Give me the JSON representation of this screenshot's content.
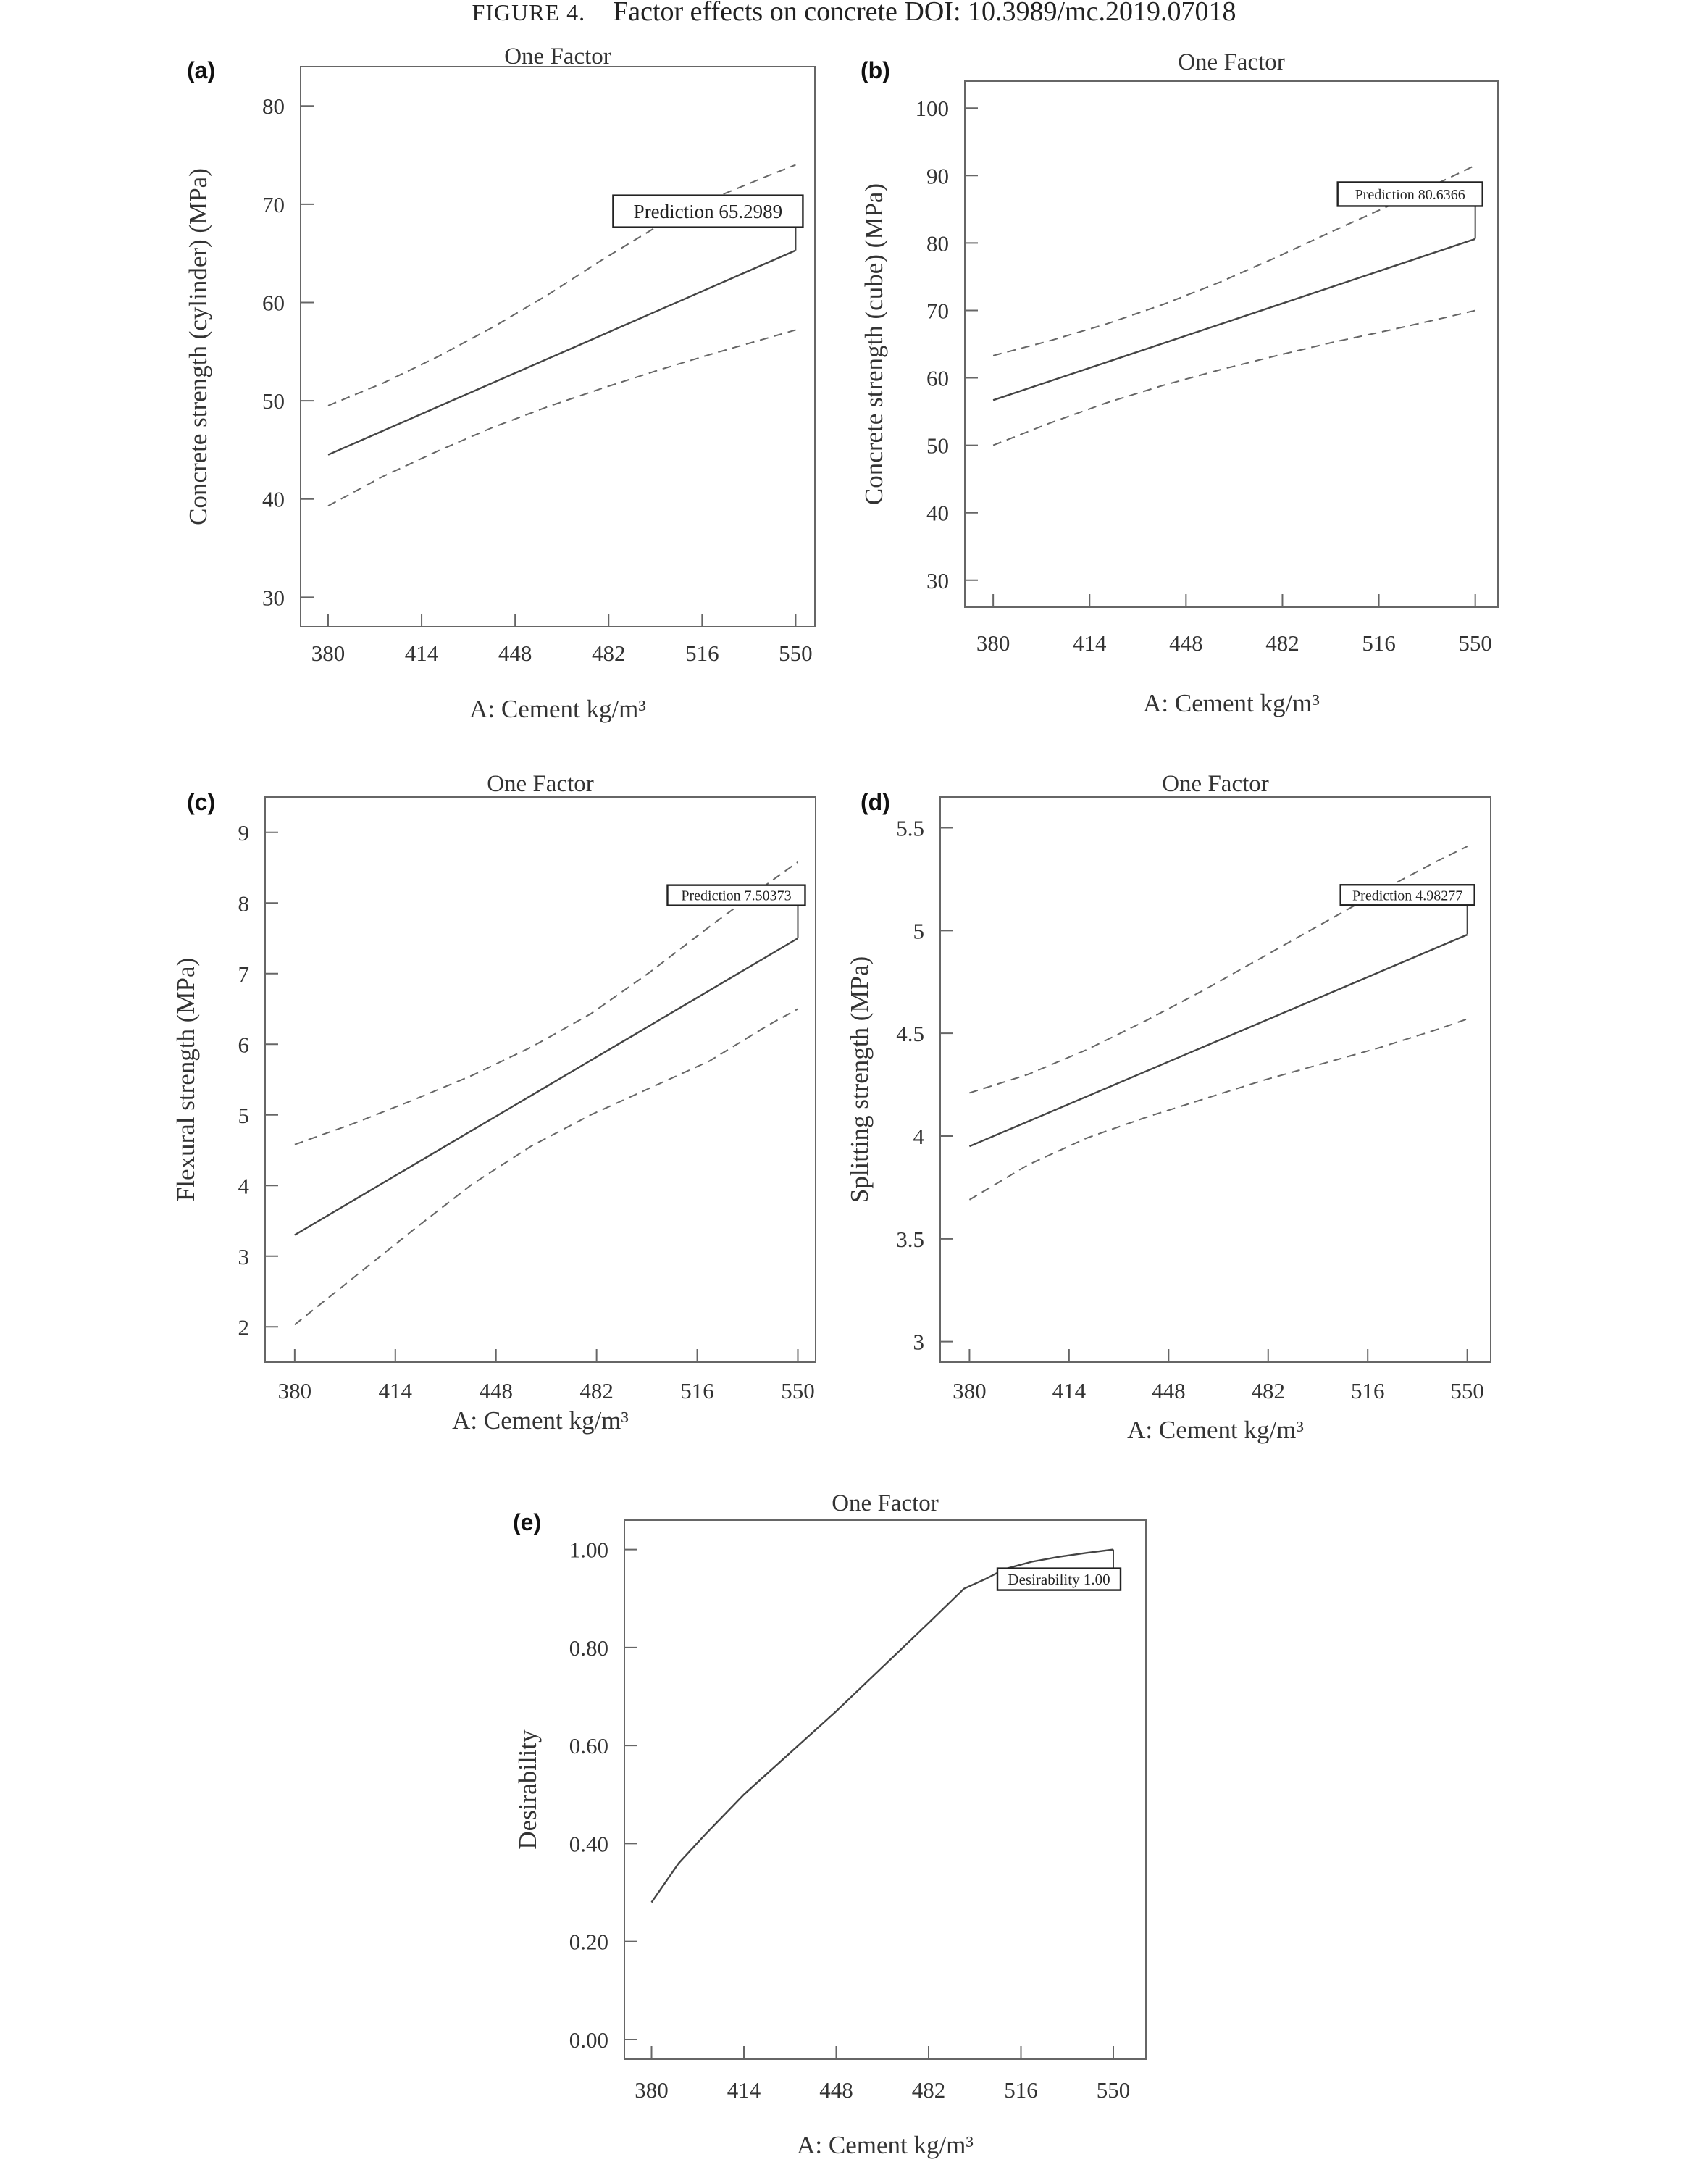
{
  "caption": {
    "label": "FIGURE 4.",
    "text": "Factor effects on concrete DOI: 10.3989/mc.2019.07018"
  },
  "chart_data": [
    {
      "type": "line",
      "panel": "(a)",
      "title": "One Factor",
      "xlabel": "A: Cement kg/m³",
      "ylabel": "Concrete strength (cylinder) (MPa)",
      "xlim": [
        370,
        557
      ],
      "ylim": [
        27,
        84
      ],
      "xticks": [
        "380",
        "414",
        "448",
        "482",
        "516",
        "550"
      ],
      "yticks": [
        "30",
        "40",
        "50",
        "60",
        "70",
        "80"
      ],
      "annotation": {
        "text": "Prediction 65.2989",
        "x": 550,
        "y": 65.2989
      },
      "series": [
        {
          "role": "mean",
          "x": [
            380,
            550
          ],
          "y": [
            44.5,
            65.3
          ]
        },
        {
          "role": "upper",
          "x": [
            380,
            400,
            420,
            440,
            460,
            480,
            500,
            520,
            540,
            550
          ],
          "y": [
            49.5,
            51.8,
            54.5,
            57.5,
            60.8,
            64.4,
            67.8,
            70.6,
            72.9,
            74.0
          ]
        },
        {
          "role": "lower",
          "x": [
            380,
            400,
            420,
            440,
            460,
            480,
            500,
            520,
            540,
            550
          ],
          "y": [
            39.3,
            42.3,
            44.9,
            47.3,
            49.4,
            51.3,
            53.1,
            54.8,
            56.4,
            57.2
          ]
        }
      ]
    },
    {
      "type": "line",
      "panel": "(b)",
      "title": "One Factor",
      "xlabel": "A: Cement kg/m³",
      "ylabel": "Concrete strength (cube) (MPa)",
      "xlim": [
        370,
        558
      ],
      "ylim": [
        26,
        104
      ],
      "xticks": [
        "380",
        "414",
        "448",
        "482",
        "516",
        "550"
      ],
      "yticks": [
        "30",
        "40",
        "50",
        "60",
        "70",
        "80",
        "90",
        "100"
      ],
      "annotation": {
        "text": "Prediction 80.6366",
        "x": 550,
        "y": 80.6366
      },
      "series": [
        {
          "role": "mean",
          "x": [
            380,
            550
          ],
          "y": [
            56.7,
            80.6
          ]
        },
        {
          "role": "upper",
          "x": [
            380,
            400,
            420,
            440,
            460,
            480,
            500,
            520,
            540,
            550
          ],
          "y": [
            63.3,
            65.5,
            68.0,
            70.9,
            74.2,
            77.9,
            81.8,
            85.6,
            89.5,
            91.5
          ]
        },
        {
          "role": "lower",
          "x": [
            380,
            400,
            420,
            440,
            460,
            480,
            500,
            520,
            540,
            550
          ],
          "y": [
            50.0,
            53.3,
            56.3,
            58.9,
            61.2,
            63.3,
            65.3,
            67.1,
            69.0,
            70.0
          ]
        }
      ]
    },
    {
      "type": "line",
      "panel": "(c)",
      "title": "One Factor",
      "xlabel": "A: Cement kg/m³",
      "ylabel": "Flexural strength (MPa)",
      "xlim": [
        370,
        556
      ],
      "ylim": [
        1.5,
        9.5
      ],
      "xticks": [
        "380",
        "414",
        "448",
        "482",
        "516",
        "550"
      ],
      "yticks": [
        "2",
        "3",
        "4",
        "5",
        "6",
        "7",
        "8",
        "9"
      ],
      "annotation": {
        "text": "Prediction 7.50373",
        "x": 550,
        "y": 7.50373
      },
      "series": [
        {
          "role": "mean",
          "x": [
            380,
            550
          ],
          "y": [
            3.3,
            7.5
          ]
        },
        {
          "role": "upper",
          "x": [
            380,
            400,
            420,
            440,
            460,
            480,
            500,
            520,
            540,
            550
          ],
          "y": [
            4.58,
            4.88,
            5.21,
            5.56,
            5.96,
            6.43,
            7.02,
            7.66,
            8.28,
            8.58
          ]
        },
        {
          "role": "lower",
          "x": [
            380,
            400,
            420,
            440,
            460,
            480,
            500,
            520,
            540,
            550
          ],
          "y": [
            2.03,
            2.7,
            3.37,
            4.02,
            4.56,
            5.0,
            5.38,
            5.76,
            6.27,
            6.5
          ]
        }
      ]
    },
    {
      "type": "line",
      "panel": "(d)",
      "title": "One Factor",
      "xlabel": "A: Cement kg/m³",
      "ylabel": "Splitting strength (MPa)",
      "xlim": [
        370,
        558
      ],
      "ylim": [
        2.9,
        5.65
      ],
      "xticks": [
        "380",
        "414",
        "448",
        "482",
        "516",
        "550"
      ],
      "yticks": [
        "3",
        "3.5",
        "4",
        "4.5",
        "5",
        "5.5"
      ],
      "annotation": {
        "text": "Prediction 4.98277",
        "x": 550,
        "y": 4.98277
      },
      "series": [
        {
          "role": "mean",
          "x": [
            380,
            550
          ],
          "y": [
            3.95,
            4.98
          ]
        },
        {
          "role": "upper",
          "x": [
            380,
            400,
            420,
            440,
            460,
            480,
            500,
            520,
            540,
            550
          ],
          "y": [
            4.21,
            4.3,
            4.42,
            4.56,
            4.71,
            4.87,
            5.03,
            5.19,
            5.34,
            5.41
          ]
        },
        {
          "role": "lower",
          "x": [
            380,
            400,
            420,
            440,
            460,
            480,
            500,
            520,
            540,
            550
          ],
          "y": [
            3.69,
            3.86,
            3.99,
            4.09,
            4.18,
            4.27,
            4.35,
            4.43,
            4.52,
            4.57
          ]
        }
      ]
    },
    {
      "type": "line",
      "panel": "(e)",
      "title": "One Factor",
      "xlabel": "A: Cement kg/m³",
      "ylabel": "Desirability",
      "xlim": [
        370,
        562
      ],
      "ylim": [
        -0.04,
        1.06
      ],
      "xticks": [
        "380",
        "414",
        "448",
        "482",
        "516",
        "550"
      ],
      "yticks": [
        "0.00",
        "0.20",
        "0.40",
        "0.60",
        "0.80",
        "1.00"
      ],
      "annotation": {
        "text": "Desirability 1.00",
        "x": 550,
        "y": 1.0
      },
      "series": [
        {
          "role": "mean",
          "x": [
            380,
            390,
            400,
            414,
            430,
            448,
            465,
            482,
            495,
            503,
            510,
            520,
            530,
            540,
            550
          ],
          "y": [
            0.28,
            0.36,
            0.42,
            0.5,
            0.58,
            0.67,
            0.76,
            0.85,
            0.92,
            0.94,
            0.96,
            0.975,
            0.985,
            0.993,
            1.0
          ]
        }
      ]
    }
  ]
}
